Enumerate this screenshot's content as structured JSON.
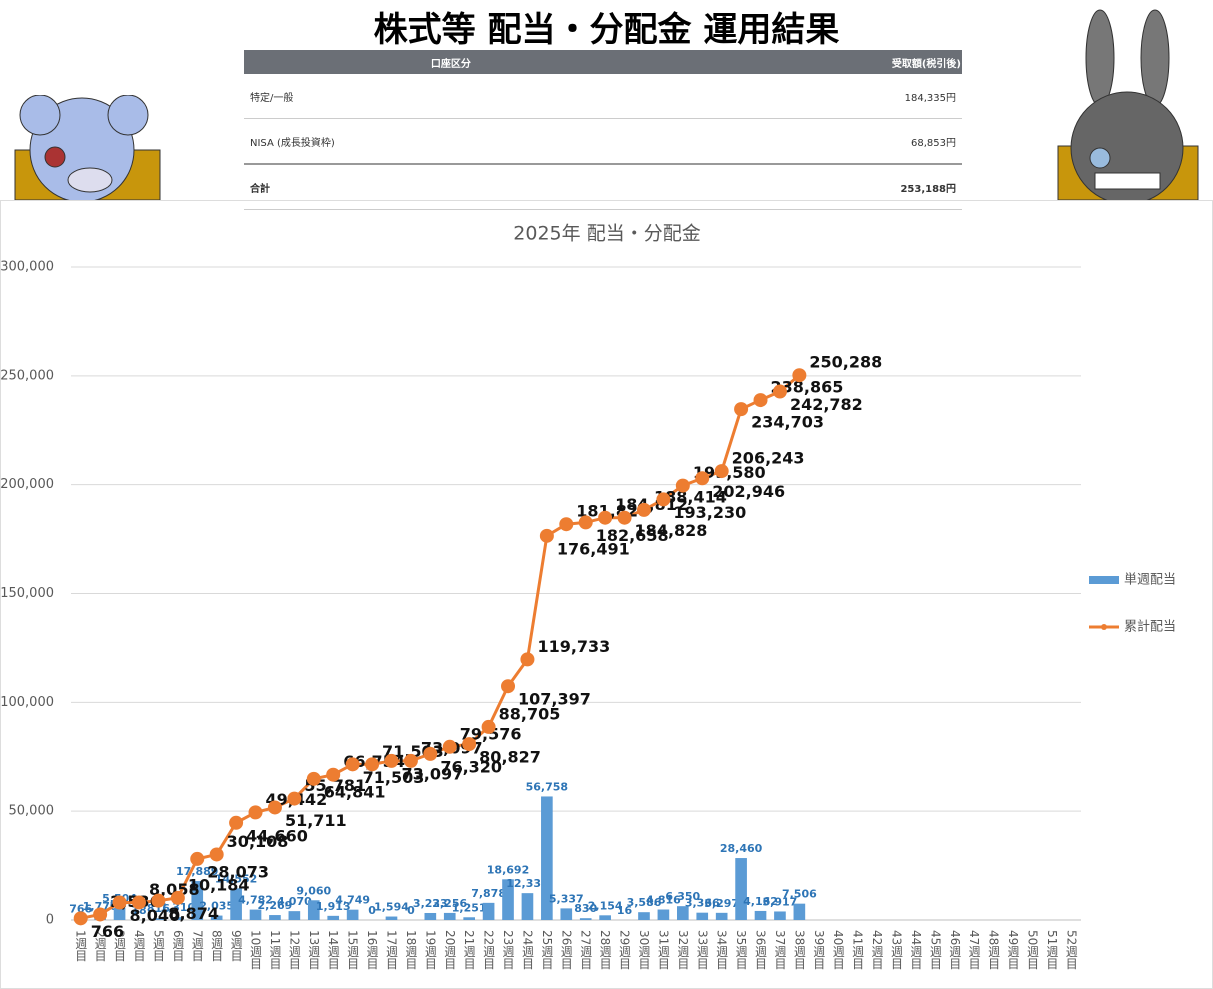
{
  "header": {
    "title": "株式等 配当・分配金 運用結果"
  },
  "table": {
    "columns": [
      "口座区分",
      "受取額(税引後)"
    ],
    "rows": [
      [
        "特定/一般",
        "184,335円"
      ],
      [
        "NISA (成長投資枠)",
        "68,853円"
      ],
      [
        "合計",
        "253,188円"
      ]
    ]
  },
  "chart_data": {
    "type": "bar-line",
    "title": "2025年 配当・分配金",
    "categories": [
      "1週目",
      "2週目",
      "3週目",
      "4週目",
      "5週目",
      "6週目",
      "7週目",
      "8週目",
      "9週目",
      "10週目",
      "11週目",
      "12週目",
      "13週目",
      "14週目",
      "15週目",
      "16週目",
      "17週目",
      "18週目",
      "19週目",
      "20週目",
      "21週目",
      "22週目",
      "23週目",
      "24週目",
      "25週目",
      "26週目",
      "27週目",
      "28週目",
      "29週目",
      "30週目",
      "31週目",
      "32週目",
      "33週目",
      "34週目",
      "35週目",
      "36週目",
      "37週目",
      "38週目",
      "39週目",
      "40週目",
      "41週目",
      "42週目",
      "43週目",
      "44週目",
      "45週目",
      "46週目",
      "47週目",
      "48週目",
      "49週目",
      "50週目",
      "51週目",
      "52週目"
    ],
    "series": [
      {
        "name": "単週配当",
        "type": "bar",
        "color": "#5b9bd5",
        "values": [
          766,
          1770,
          5504,
          18,
          816,
          1310,
          17889,
          2035,
          14552,
          4782,
          2269,
          4070,
          9060,
          1913,
          4749,
          0,
          1594,
          0,
          3223,
          3256,
          1251,
          7878,
          18692,
          12336,
          56758,
          5337,
          830,
          2154,
          16,
          3586,
          4816,
          6350,
          3366,
          3297,
          28460,
          4162,
          3917,
          7506,
          null,
          null,
          null,
          null,
          null,
          null,
          null,
          null,
          null,
          null,
          null,
          null,
          null,
          null
        ],
        "value_labels": [
          "766",
          "1,770",
          "5,504",
          "18",
          "816",
          "1,310",
          "17,889",
          "2,035",
          "14,552",
          "4,782",
          "2,269",
          "4,070",
          "9,060",
          "1,913",
          "4,749",
          "0",
          "1,594",
          "0",
          "3,223",
          "3,256",
          "1,251",
          "7,878",
          "18,692",
          "12,336",
          "56,758",
          "5,337",
          "830",
          "2,154",
          "16",
          "3,586",
          "4,816",
          "6,350",
          "3,366",
          "3,297",
          "28,460",
          "4,162",
          "3,917",
          "7,506",
          null,
          null,
          null,
          null,
          null,
          null,
          null,
          null,
          null,
          null,
          null,
          null,
          null,
          null
        ]
      },
      {
        "name": "累計配当",
        "type": "line",
        "color": "#ed7d31",
        "values": [
          766,
          2536,
          8040,
          8058,
          8874,
          10184,
          28073,
          30108,
          44660,
          49442,
          51711,
          55781,
          64841,
          66754,
          71503,
          71503,
          73097,
          73097,
          76320,
          79576,
          80827,
          88705,
          107397,
          119733,
          176491,
          181828,
          182658,
          184812,
          184828,
          188414,
          193230,
          199580,
          202946,
          206243,
          234703,
          238865,
          242782,
          250288,
          null,
          null,
          null,
          null,
          null,
          null,
          null,
          null,
          null,
          null,
          null,
          null,
          null,
          null
        ],
        "value_labels": [
          "766",
          "2,536",
          "8,040",
          "8,058",
          "8,874",
          "10,184",
          "28,073",
          "30,108",
          "44,660",
          "49,442",
          "51,711",
          "55,781",
          "64,841",
          "66,754",
          "71,503",
          "71,503",
          "73,097",
          "73,097",
          "76,320",
          "79,576",
          "80,827",
          "88,705",
          "107,397",
          "119,733",
          "176,491",
          "181,828",
          "182,658",
          "184,812",
          "184,828",
          "188,414",
          "193,230",
          "199,580",
          "202,946",
          "206,243",
          "234,703",
          "238,865",
          "242,782",
          "250,288",
          null,
          null,
          null,
          null,
          null,
          null,
          null,
          null,
          null,
          null,
          null,
          null,
          null,
          null
        ]
      }
    ],
    "ylim": [
      0,
      300000
    ],
    "yticks": [
      0,
      {
        "value": 50000,
        "label": "50,000"
      },
      {
        "value": 100000,
        "label": "100,000"
      },
      {
        "value": 150000,
        "label": "150,000"
      },
      {
        "value": 200000,
        "label": "200,000"
      },
      {
        "value": 250000,
        "label": "250,000"
      },
      {
        "value": 300000,
        "label": "300,000"
      }
    ],
    "grid": true,
    "legend": "right"
  }
}
